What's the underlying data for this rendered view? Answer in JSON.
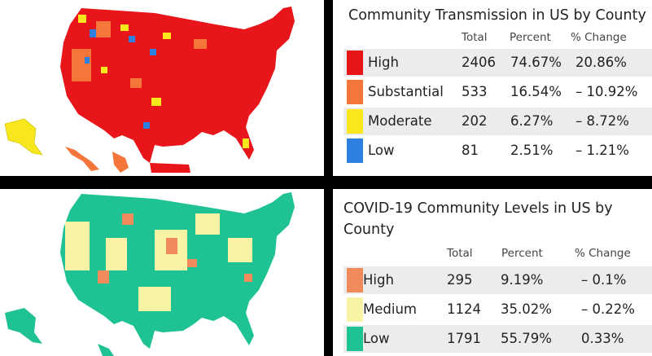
{
  "transmission": {
    "title": "Community Transmission in US by County",
    "headers": {
      "total": "Total",
      "percent": "Percent",
      "change": "% Change"
    },
    "rows": [
      {
        "label": "High",
        "total": "2406",
        "percent": "74.67%",
        "change": "20.86%",
        "color": "#e8161b"
      },
      {
        "label": "Substantial",
        "total": "533",
        "percent": "16.54%",
        "change": "– 10.92%",
        "color": "#f4763a"
      },
      {
        "label": "Moderate",
        "total": "202",
        "percent": "6.27%",
        "change": "– 8.72%",
        "color": "#f7e71c"
      },
      {
        "label": "Low",
        "total": "81",
        "percent": "2.51%",
        "change": "– 1.21%",
        "color": "#2f7fe0"
      }
    ]
  },
  "levels": {
    "title": "COVID-19 Community Levels in US by County",
    "headers": {
      "total": "Total",
      "percent": "Percent",
      "change": "% Change"
    },
    "rows": [
      {
        "label": "High",
        "total": "295",
        "percent": "9.19%",
        "change": "– 0.1%",
        "color": "#f28b5c"
      },
      {
        "label": "Medium",
        "total": "1124",
        "percent": "35.02%",
        "change": "– 0.22%",
        "color": "#f9f3a6"
      },
      {
        "label": "Low",
        "total": "1791",
        "percent": "55.79%",
        "change": "0.33%",
        "color": "#1fc393"
      }
    ]
  }
}
